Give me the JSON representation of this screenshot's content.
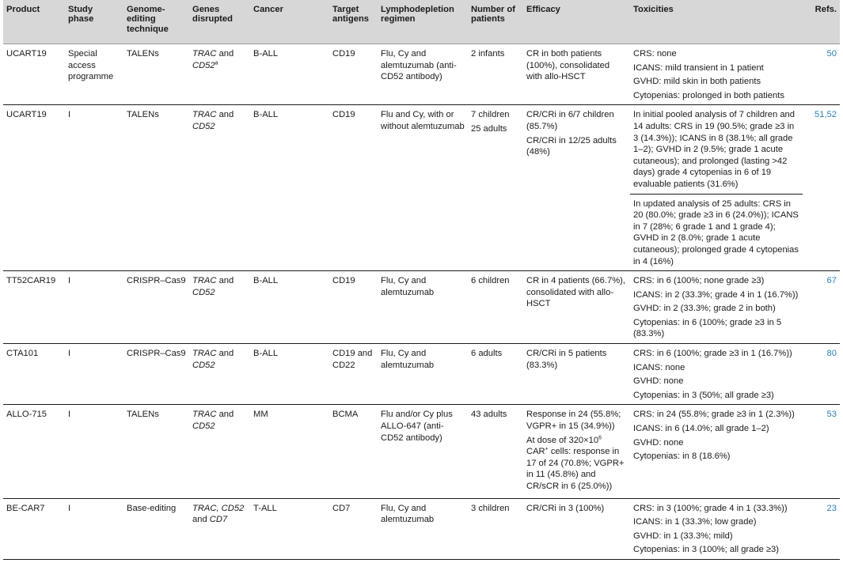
{
  "headers": {
    "product": "Product",
    "phase": "Study phase",
    "technique": "Genome-editing technique",
    "genes": "Genes disrupted",
    "cancer": "Cancer",
    "antigens": "Target antigens",
    "regimen": "Lymphodepletion regimen",
    "patients": "Number of patients",
    "efficacy": "Efficacy",
    "toxicities": "Toxicities",
    "refs": "Refs."
  },
  "rows": [
    {
      "product": "UCART19",
      "phase": "Special access programme",
      "technique": "TALENs",
      "cancer": "B-ALL",
      "antigens": "CD19",
      "regimen": "Flu, Cy and alemtuzumab (anti-CD52 antibody)",
      "patients": [
        "2 infants"
      ],
      "efficacy": [
        "CR in both patients (100%), consolidated with allo-HSCT"
      ],
      "toxicities": [
        "CRS: none",
        "ICANS: mild transient in 1 patient",
        "GVHD: mild skin in both patients",
        "Cytopenias: prolonged in both patients"
      ],
      "refs": "50"
    },
    {
      "product": "UCART19",
      "phase": "I",
      "technique": "TALENs",
      "cancer": "B-ALL",
      "antigens": "CD19",
      "regimen": "Flu and Cy, with or without alemtuzumab",
      "patients": [
        "7 children",
        "25 adults"
      ],
      "efficacy": [
        "CR/CRi in 6/7 children (85.7%)",
        "CR/CRi in 12/25 adults (48%)"
      ],
      "toxicities": [
        "In initial pooled analysis of 7 children and 14 adults: CRS in 19 (90.5%; grade ≥3 in 3 (14.3%)); ICANS in 8 (38.1%; all grade 1–2); GVHD in 2 (9.5%; grade 1 acute cutaneous); and prolonged (lasting >42 days) grade 4 cytopenias in 6 of 19 evaluable patients (31.6%)"
      ],
      "toxicities_sub": [
        "In updated analysis of 25 adults: CRS in 20 (80.0%; grade ≥3 in 6 (24.0%)); ICANS in 7 (28%; 6 grade 1 and 1 grade 4); GVHD in 2 (8.0%; grade 1 acute cutaneous); prolonged grade 4 cytopenias in 4 (16%)"
      ],
      "refs": "51,52"
    },
    {
      "product": "TT52CAR19",
      "phase": "I",
      "technique": "CRISPR–Cas9",
      "cancer": "B-ALL",
      "antigens": "CD19",
      "regimen": "Flu, Cy and alemtuzumab",
      "patients": [
        "6 children"
      ],
      "efficacy": [
        "CR in 4 patients (66.7%), consolidated with allo-HSCT"
      ],
      "toxicities": [
        "CRS: in 6 (100%; none grade ≥3)",
        "ICANS: in 2 (33.3%; grade 4 in 1 (16.7%))",
        "GVHD: in 2 (33.3%; grade 2 in both)",
        "Cytopenias: in 6 (100%; grade ≥3 in 5 (83.3%)"
      ],
      "refs": "67"
    },
    {
      "product": "CTA101",
      "phase": "I",
      "technique": "CRISPR–Cas9",
      "cancer": "B-ALL",
      "antigens": "CD19 and CD22",
      "regimen": "Flu, Cy and alemtuzumab",
      "patients": [
        "6 adults"
      ],
      "efficacy": [
        "CR/CRi in 5 patients (83.3%)"
      ],
      "toxicities": [
        "CRS: in 6 (100%; grade ≥3 in 1 (16.7%))",
        "ICANS: none",
        "GVHD: none",
        "Cytopenias: in 3 (50%; all grade ≥3)"
      ],
      "refs": "80"
    },
    {
      "product": "ALLO-715",
      "phase": "I",
      "technique": "TALENs",
      "cancer": "MM",
      "antigens": "BCMA",
      "regimen": "Flu and/or Cy plus ALLO-647 (anti-CD52 antibody)",
      "patients": [
        "43 adults"
      ],
      "efficacy": [
        "Response in 24 (55.8%; VGPR+ in 15 (34.9%))"
      ],
      "efficacy_dose": {
        "prefix": "At dose of 320×10",
        "exp": "6",
        "car": "CAR",
        "plus": "+",
        "rest": " cells: response in 17 of 24 (70.8%; VGPR+ in 11 (45.8%) and CR/sCR in 6 (25.0%))"
      },
      "toxicities": [
        "CRS: in 24 (55.8%; grade ≥3 in 1 (2.3%))",
        "ICANS: in 6 (14.0%; all grade 1–2)",
        "GVHD: none",
        "Cytopenias: in 8 (18.6%)"
      ],
      "refs": "53"
    },
    {
      "product": "BE-CAR7",
      "phase": "I",
      "technique": "Base-editing",
      "cancer": "T-ALL",
      "antigens": "CD7",
      "regimen": "Flu, Cy and alemtuzumab",
      "patients": [
        "3 children"
      ],
      "efficacy": [
        "CR/CRi in 3 (100%)"
      ],
      "toxicities": [
        "CRS: in 3 (100%; grade 4 in 1 (33.3%))",
        "ICANS: in 1 (33.3%; low grade)",
        "GVHD: in 1 (33.3%; mild)",
        "Cytopenias: in 3 (100%; all grade ≥3)"
      ],
      "refs": "23"
    }
  ],
  "genes": {
    "r1": {
      "g1": "TRAC",
      "and": " and ",
      "g2": "CD52",
      "sup": "a"
    },
    "r2": {
      "g1": "TRAC",
      "and": " and ",
      "g2": "CD52"
    },
    "r3": {
      "g1": "TRAC",
      "and": " and ",
      "g2": "CD52"
    },
    "r4": {
      "g1": "TRAC",
      "and": " and ",
      "g2": "CD52"
    },
    "r5": {
      "g1": "TRAC",
      "and": " and ",
      "g2": "CD52"
    },
    "r6": {
      "g1": "TRAC, CD52",
      "and": " and ",
      "g2": "CD7"
    }
  }
}
